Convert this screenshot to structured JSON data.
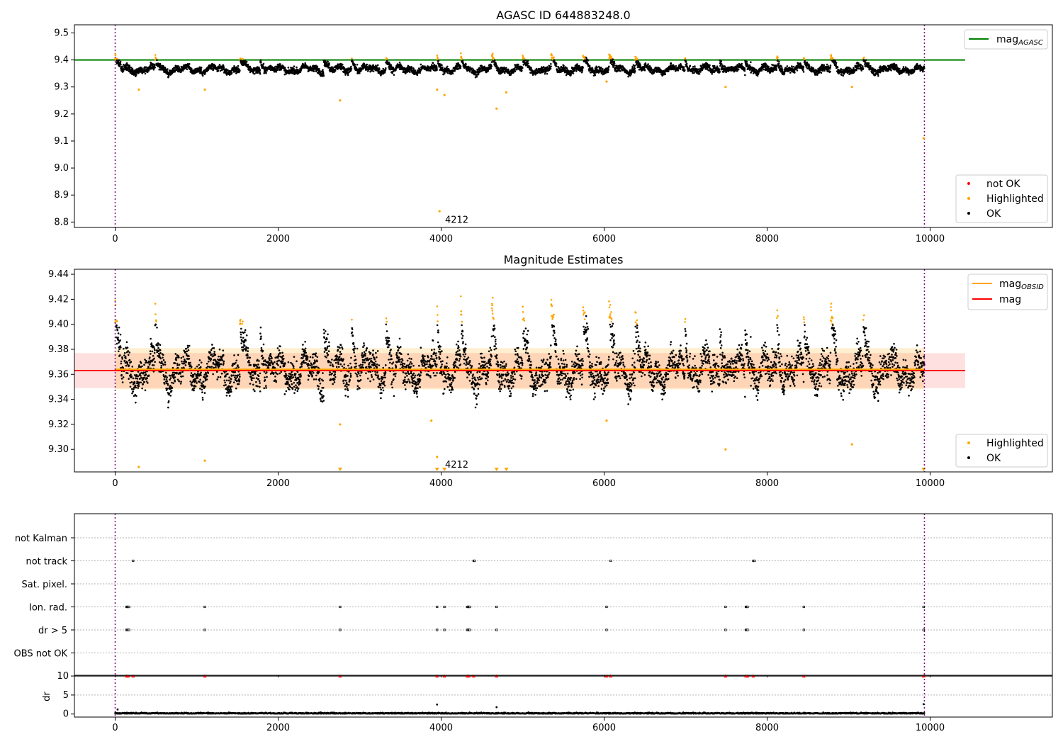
{
  "chart_data": [
    {
      "id": "agasc",
      "type": "scatter",
      "title": "AGASC ID 644883248.0",
      "xlim": [
        -500,
        11500
      ],
      "ylim": [
        8.78,
        9.53
      ],
      "x_ticks": [
        0,
        2000,
        4000,
        6000,
        8000,
        10000
      ],
      "y_ticks": [
        8.8,
        8.9,
        9.0,
        9.1,
        9.2,
        9.3,
        9.4,
        9.5
      ],
      "y_tick_labels": [
        "8.8",
        "8.9",
        "9.0",
        "9.1",
        "9.2",
        "9.3",
        "9.4",
        "9.5"
      ],
      "vlines": [
        0,
        9930
      ],
      "annotation": {
        "text": "4212",
        "x": 4800,
        "y": 8.8
      },
      "hlines": [
        {
          "name": "mag_AGASC",
          "value": 9.4,
          "x_range": [
            -500,
            10430
          ],
          "color": "#008000"
        }
      ],
      "series": [
        {
          "name": "not OK",
          "color": "#ff0000",
          "values": []
        },
        {
          "name": "Highlighted",
          "color": "#ffa500"
        },
        {
          "name": "OK",
          "color": "#000000"
        }
      ],
      "legend_lines": {
        "placement": "top-right",
        "entries": [
          {
            "label": "mag",
            "subscript": "AGASC",
            "color": "#008000"
          }
        ]
      },
      "legend_points": {
        "placement": "bottom-right",
        "entries": [
          {
            "label": "not OK",
            "color": "#ff0000"
          },
          {
            "label": "Highlighted",
            "color": "#ffa500"
          },
          {
            "label": "OK",
            "color": "#000000"
          }
        ]
      },
      "baseline": 9.365,
      "bumps": [
        0,
        490,
        1530,
        1780,
        2560,
        2900,
        3320,
        3950,
        4240,
        4620,
        5000,
        5350,
        5740,
        6060,
        6380,
        6990,
        7420,
        7730,
        8120,
        8450,
        8780,
        9180
      ],
      "outliers": [
        [
          290,
          9.29
        ],
        [
          1100,
          9.29
        ],
        [
          2760,
          9.25
        ],
        [
          3950,
          9.29
        ],
        [
          3980,
          8.84
        ],
        [
          4040,
          9.27
        ],
        [
          4680,
          9.22
        ],
        [
          4800,
          9.28
        ],
        [
          6030,
          9.32
        ],
        [
          7490,
          9.3
        ],
        [
          9040,
          9.3
        ],
        [
          9920,
          9.11
        ]
      ]
    },
    {
      "id": "mag_estimates",
      "type": "scatter",
      "title": "Magnitude Estimates",
      "xlim": [
        -500,
        11500
      ],
      "ylim": [
        9.282,
        9.444
      ],
      "x_ticks": [
        0,
        2000,
        4000,
        6000,
        8000,
        10000
      ],
      "y_ticks": [
        9.3,
        9.32,
        9.34,
        9.36,
        9.38,
        9.4,
        9.42,
        9.44
      ],
      "y_tick_labels": [
        "9.30",
        "9.32",
        "9.34",
        "9.36",
        "9.38",
        "9.40",
        "9.42",
        "9.44"
      ],
      "vlines": [
        0,
        9930
      ],
      "annotation": {
        "text": "4212",
        "x": 4800,
        "y": 9.286
      },
      "mag": 9.363,
      "mag_band": [
        9.349,
        9.377
      ],
      "mag_obsid_band": [
        9.348,
        9.381
      ],
      "hlines": [
        {
          "name": "mag_OBSID",
          "value": 9.364,
          "x_range": [
            0,
            9930
          ],
          "color": "#ffa500"
        },
        {
          "name": "mag",
          "value": 9.363,
          "x_range": [
            -500,
            10430
          ],
          "color": "#ff0000"
        }
      ],
      "legend_lines": {
        "placement": "top-right",
        "entries": [
          {
            "label": "mag",
            "subscript": "OBSID",
            "color": "#ffa500"
          },
          {
            "label": "mag",
            "subscript": "",
            "color": "#ff0000"
          }
        ]
      },
      "legend_points": {
        "placement": "bottom-right",
        "entries": [
          {
            "label": "Highlighted",
            "color": "#ffa500"
          },
          {
            "label": "OK",
            "color": "#000000"
          }
        ]
      },
      "clipped_low": [
        2760,
        3950,
        4040,
        4680,
        4800,
        9920
      ],
      "outliers": [
        [
          290,
          9.286
        ],
        [
          1100,
          9.291
        ],
        [
          2760,
          9.32
        ],
        [
          3880,
          9.323
        ],
        [
          3950,
          9.294
        ],
        [
          6030,
          9.323
        ],
        [
          7490,
          9.3
        ],
        [
          9040,
          9.304
        ]
      ]
    },
    {
      "id": "flags",
      "type": "scatter",
      "xlim": [
        -500,
        11500
      ],
      "x_ticks": [
        0,
        2000,
        4000,
        6000,
        8000,
        10000
      ],
      "categories": [
        "not Kalman",
        "not track",
        "Sat. pixel.",
        "Ion. rad.",
        "dr > 5",
        "OBS not OK"
      ],
      "vlines": [
        0,
        9930
      ],
      "flag_points": {
        "not Kalman": [],
        "not track": [
          220,
          4400,
          4410,
          6080,
          7830,
          7845
        ],
        "Sat. pixel.": [],
        "Ion. rad.": [
          140,
          150,
          160,
          170,
          1100,
          2760,
          3950,
          4040,
          4320,
          4330,
          4340,
          4350,
          4680,
          6030,
          7490,
          7740,
          7750,
          7760,
          8450,
          9920
        ],
        "dr > 5": [
          140,
          150,
          160,
          170,
          1100,
          2760,
          3950,
          4040,
          4320,
          4330,
          4340,
          4350,
          4680,
          6030,
          7490,
          7740,
          7750,
          7760,
          8450,
          9920
        ],
        "OBS not OK": []
      }
    },
    {
      "id": "dr",
      "type": "scatter",
      "ylabel": "dr",
      "xlim": [
        -500,
        11500
      ],
      "ylim": [
        -0.8,
        10.2
      ],
      "x_ticks": [
        0,
        2000,
        4000,
        6000,
        8000,
        10000
      ],
      "x_tick_labels": [
        "0",
        "2000",
        "4000",
        "6000",
        "8000",
        "10000"
      ],
      "y_ticks": [
        0,
        5,
        10
      ],
      "y_tick_labels": [
        "0",
        "5",
        "10"
      ],
      "vlines": [
        0,
        9930
      ],
      "hline": 10,
      "clipped_high": [
        140,
        160,
        220,
        1100,
        2760,
        3950,
        4040,
        4320,
        4340,
        4400,
        4680,
        6030,
        6080,
        7490,
        7740,
        7760,
        7830,
        8450,
        9920
      ],
      "outliers": [
        [
          3950,
          2.5
        ],
        [
          4680,
          1.8
        ],
        [
          9920,
          2.6
        ],
        [
          30,
          1.2
        ]
      ]
    }
  ]
}
